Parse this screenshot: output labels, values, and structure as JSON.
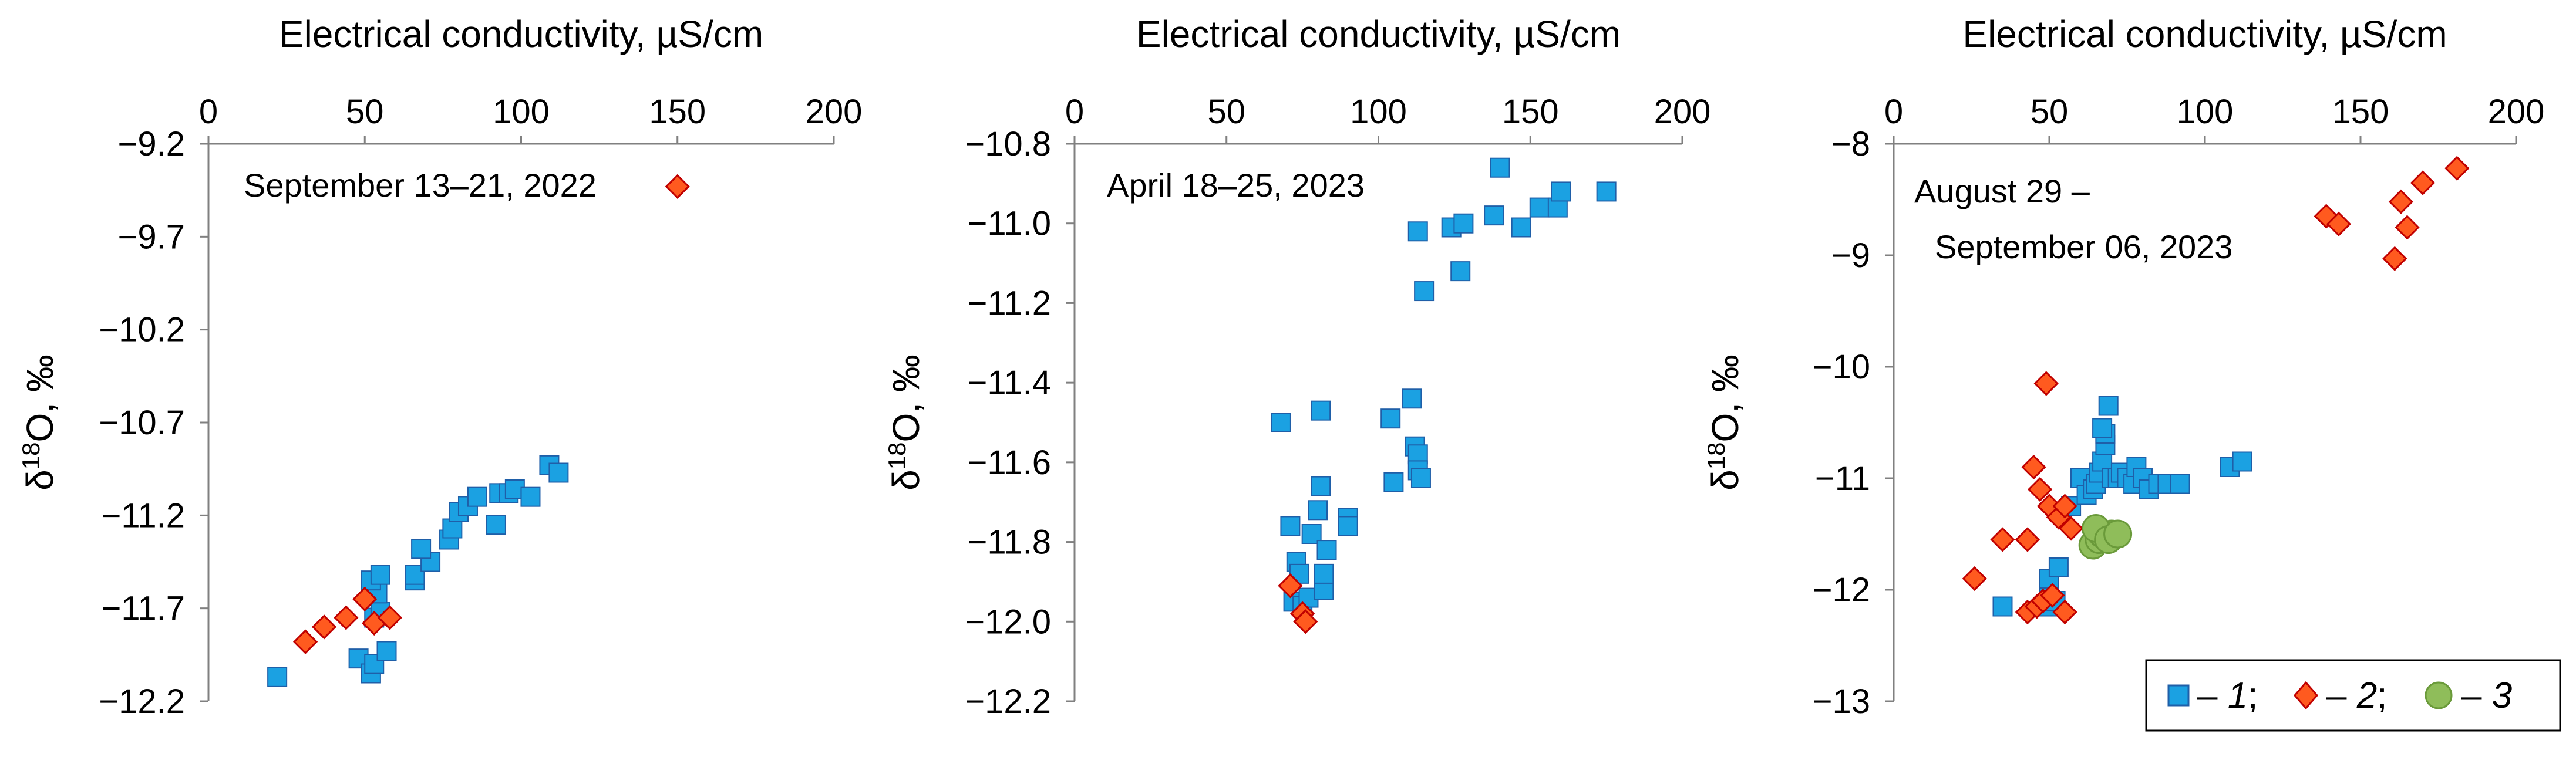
{
  "legend": {
    "items": [
      {
        "dash": "– ",
        "num": "1",
        "sep": ";"
      },
      {
        "dash": "– ",
        "num": "2",
        "sep": ";"
      },
      {
        "dash": "– ",
        "num": "3",
        "sep": ""
      }
    ]
  },
  "colors": {
    "series1_fill": "#1ba1e2",
    "series1_stroke": "#1f5fa8",
    "series2_fill": "#ff5a1f",
    "series2_stroke": "#c00000",
    "series3_fill": "#8fbd5a",
    "series3_stroke": "#6a9a3a"
  },
  "chart_data": [
    {
      "type": "scatter",
      "date_label": [
        "September 13–21, 2022"
      ],
      "xlabel": "Electrical conductivity, µS/cm",
      "ylabel_prefix": "δ",
      "ylabel_sup": "18",
      "ylabel_suffix": "O, ‰",
      "xlim": [
        0,
        200
      ],
      "xticks": [
        0,
        50,
        100,
        150,
        200
      ],
      "ylim": [
        -12.2,
        -9.2
      ],
      "yticks": [
        -12.2,
        -11.7,
        -11.2,
        -10.7,
        -10.2,
        -9.7,
        -9.2
      ],
      "ytick_labels": [
        "−12.2",
        "−11.7",
        "−11.2",
        "−10.7",
        "−10.2",
        "−9.7",
        "−9.2"
      ],
      "series": [
        {
          "id": "1",
          "marker": "square",
          "points": [
            [
              22,
              -12.07
            ],
            [
              48,
              -11.97
            ],
            [
              52,
              -12.05
            ],
            [
              53,
              -12.0
            ],
            [
              57,
              -11.93
            ],
            [
              53,
              -11.75
            ],
            [
              55,
              -11.72
            ],
            [
              54,
              -11.62
            ],
            [
              52,
              -11.55
            ],
            [
              55,
              -11.52
            ],
            [
              66,
              -11.55
            ],
            [
              66,
              -11.52
            ],
            [
              71,
              -11.45
            ],
            [
              68,
              -11.38
            ],
            [
              77,
              -11.33
            ],
            [
              78,
              -11.27
            ],
            [
              80,
              -11.18
            ],
            [
              83,
              -11.15
            ],
            [
              86,
              -11.1
            ],
            [
              92,
              -11.25
            ],
            [
              93,
              -11.08
            ],
            [
              96,
              -11.08
            ],
            [
              98,
              -11.06
            ],
            [
              103,
              -11.1
            ],
            [
              109,
              -10.93
            ],
            [
              112,
              -10.97
            ]
          ]
        },
        {
          "id": "2",
          "marker": "diamond",
          "points": [
            [
              31,
              -11.88
            ],
            [
              37,
              -11.8
            ],
            [
              44,
              -11.75
            ],
            [
              50,
              -11.65
            ],
            [
              53,
              -11.78
            ],
            [
              58,
              -11.75
            ],
            [
              150,
              -9.43
            ]
          ]
        }
      ]
    },
    {
      "type": "scatter",
      "date_label": [
        "April 18–25, 2023"
      ],
      "xlabel": "Electrical conductivity, µS/cm",
      "ylabel_prefix": "δ",
      "ylabel_sup": "18",
      "ylabel_suffix": "O, ‰",
      "xlim": [
        0,
        200
      ],
      "xticks": [
        0,
        50,
        100,
        150,
        200
      ],
      "ylim": [
        -12.2,
        -10.8
      ],
      "yticks": [
        -12.2,
        -12.0,
        -11.8,
        -11.6,
        -11.4,
        -11.2,
        -11.0,
        -10.8
      ],
      "ytick_labels": [
        "−12.2",
        "−12.0",
        "−11.8",
        "−11.6",
        "−11.4",
        "−11.2",
        "−11.0",
        "−10.8"
      ],
      "series": [
        {
          "id": "1",
          "marker": "square",
          "points": [
            [
              68,
              -11.5
            ],
            [
              71,
              -11.76
            ],
            [
              73,
              -11.85
            ],
            [
              74,
              -11.88
            ],
            [
              72,
              -11.95
            ],
            [
              75,
              -11.96
            ],
            [
              77,
              -11.94
            ],
            [
              78,
              -11.78
            ],
            [
              80,
              -11.72
            ],
            [
              81,
              -11.66
            ],
            [
              82,
              -11.92
            ],
            [
              82,
              -11.88
            ],
            [
              83,
              -11.82
            ],
            [
              81,
              -11.47
            ],
            [
              90,
              -11.74
            ],
            [
              90,
              -11.76
            ],
            [
              104,
              -11.49
            ],
            [
              105,
              -11.65
            ],
            [
              111,
              -11.44
            ],
            [
              112,
              -11.56
            ],
            [
              113,
              -11.58
            ],
            [
              113,
              -11.62
            ],
            [
              114,
              -11.64
            ],
            [
              113,
              -11.02
            ],
            [
              115,
              -11.17
            ],
            [
              124,
              -11.01
            ],
            [
              128,
              -11.0
            ],
            [
              127,
              -11.12
            ],
            [
              138,
              -10.98
            ],
            [
              140,
              -10.86
            ],
            [
              147,
              -11.01
            ],
            [
              153,
              -10.96
            ],
            [
              159,
              -10.96
            ],
            [
              160,
              -10.92
            ],
            [
              175,
              -10.92
            ]
          ]
        },
        {
          "id": "2",
          "marker": "diamond",
          "points": [
            [
              71,
              -11.91
            ],
            [
              75,
              -11.98
            ],
            [
              76,
              -12.0
            ]
          ]
        }
      ]
    },
    {
      "type": "scatter",
      "date_label": [
        "August 29  –",
        "September 06, 2023"
      ],
      "xlabel": "Electrical conductivity, µS/cm",
      "ylabel_prefix": "δ",
      "ylabel_sup": "18",
      "ylabel_suffix": "O, ‰",
      "xlim": [
        0,
        200
      ],
      "xticks": [
        0,
        50,
        100,
        150,
        200
      ],
      "ylim": [
        -13,
        -8
      ],
      "yticks": [
        -13,
        -12,
        -11,
        -10,
        -9,
        -8
      ],
      "ytick_labels": [
        "−13",
        "−12",
        "−11",
        "−10",
        "−9",
        "−8"
      ],
      "series": [
        {
          "id": "1",
          "marker": "square",
          "points": [
            [
              35,
              -12.15
            ],
            [
              50,
              -12.15
            ],
            [
              52,
              -12.1
            ],
            [
              50,
              -12.0
            ],
            [
              50,
              -11.9
            ],
            [
              53,
              -11.8
            ],
            [
              57,
              -11.25
            ],
            [
              60,
              -11.0
            ],
            [
              62,
              -11.15
            ],
            [
              64,
              -11.1
            ],
            [
              65,
              -11.05
            ],
            [
              66,
              -10.95
            ],
            [
              67,
              -10.85
            ],
            [
              68,
              -10.7
            ],
            [
              68,
              -10.6
            ],
            [
              67,
              -10.55
            ],
            [
              69,
              -10.35
            ],
            [
              70,
              -11.0
            ],
            [
              72,
              -11.0
            ],
            [
              73,
              -10.95
            ],
            [
              75,
              -11.0
            ],
            [
              77,
              -11.05
            ],
            [
              78,
              -10.9
            ],
            [
              80,
              -11.0
            ],
            [
              82,
              -11.1
            ],
            [
              85,
              -11.05
            ],
            [
              88,
              -11.05
            ],
            [
              92,
              -11.05
            ],
            [
              108,
              -10.9
            ],
            [
              112,
              -10.85
            ]
          ]
        },
        {
          "id": "2",
          "marker": "diamond",
          "points": [
            [
              26,
              -11.9
            ],
            [
              35,
              -11.55
            ],
            [
              43,
              -11.55
            ],
            [
              45,
              -10.9
            ],
            [
              47,
              -11.1
            ],
            [
              49,
              -10.15
            ],
            [
              50,
              -11.25
            ],
            [
              53,
              -11.35
            ],
            [
              55,
              -11.25
            ],
            [
              57,
              -11.45
            ],
            [
              43,
              -12.2
            ],
            [
              46,
              -12.15
            ],
            [
              48,
              -12.1
            ],
            [
              51,
              -12.05
            ],
            [
              55,
              -12.2
            ],
            [
              139,
              -8.65
            ],
            [
              143,
              -8.72
            ],
            [
              161,
              -9.03
            ],
            [
              163,
              -8.52
            ],
            [
              165,
              -8.75
            ],
            [
              170,
              -8.35
            ],
            [
              181,
              -8.22
            ]
          ]
        },
        {
          "id": "3",
          "marker": "circle",
          "points": [
            [
              64,
              -11.6
            ],
            [
              66,
              -11.55
            ],
            [
              67,
              -11.5
            ],
            [
              70,
              -11.5
            ],
            [
              65,
              -11.45
            ],
            [
              69,
              -11.55
            ],
            [
              72,
              -11.5
            ]
          ]
        }
      ]
    }
  ]
}
